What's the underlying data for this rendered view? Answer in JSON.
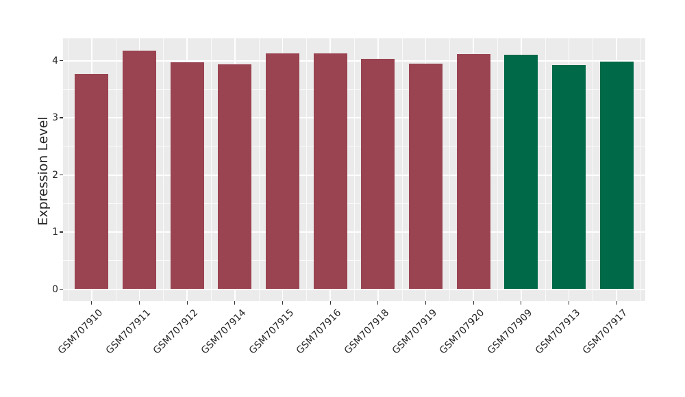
{
  "chart_data": {
    "type": "bar",
    "title": "",
    "xlabel": "",
    "ylabel": "Expression Level",
    "categories": [
      "GSM707910",
      "GSM707911",
      "GSM707912",
      "GSM707914",
      "GSM707915",
      "GSM707916",
      "GSM707918",
      "GSM707919",
      "GSM707920",
      "GSM707909",
      "GSM707913",
      "GSM707917"
    ],
    "values": [
      3.77,
      4.17,
      3.97,
      3.93,
      4.13,
      4.13,
      4.03,
      3.95,
      4.12,
      4.1,
      3.92,
      3.98
    ],
    "bar_colors": [
      "#9A4351",
      "#9A4351",
      "#9A4351",
      "#9A4351",
      "#9A4351",
      "#9A4351",
      "#9A4351",
      "#9A4351",
      "#9A4351",
      "#006948",
      "#006948",
      "#006948"
    ],
    "yticks": [
      0,
      1,
      2,
      3,
      4
    ],
    "ytick_labels": [
      "0",
      "1",
      "2",
      "3",
      "4"
    ],
    "ylim": [
      -0.21,
      4.39
    ],
    "grid": "on",
    "legend": "none",
    "x_tick_rotation_deg": 45,
    "colors": {
      "panel_background": "#EBEBEB",
      "figure_background": "#FFFFFF",
      "grid_major": "#FFFFFF",
      "grid_minor": "#FFFFFF",
      "group_maroon": "#9A4351",
      "group_green": "#006948",
      "tick_text": "#262626"
    }
  }
}
